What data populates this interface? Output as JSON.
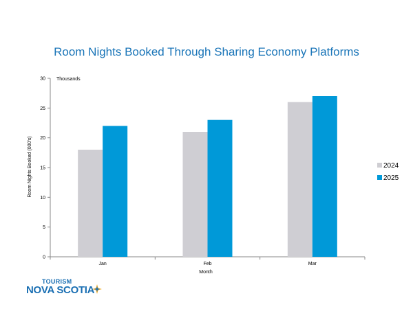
{
  "chart_data": {
    "type": "bar",
    "title": "Room Nights Booked Through Sharing Economy Platforms",
    "unit_label": "Thousands",
    "xlabel": "Month",
    "ylabel": "Room Nights Booked (000's)",
    "categories": [
      "Jan",
      "Feb",
      "Mar"
    ],
    "series": [
      {
        "name": "2024",
        "color": "#cfced3",
        "values": [
          18,
          21,
          26
        ]
      },
      {
        "name": "2025",
        "color": "#0099d8",
        "values": [
          22,
          23,
          27
        ]
      }
    ],
    "ylim": [
      0,
      30
    ],
    "yticks": [
      0,
      5,
      10,
      15,
      20,
      25,
      30
    ],
    "grid": false,
    "legend": "right"
  },
  "logo": {
    "line1": "TOURISM",
    "line2": "NOVA SCOTIA",
    "mark_icon": "compass-star-icon"
  }
}
